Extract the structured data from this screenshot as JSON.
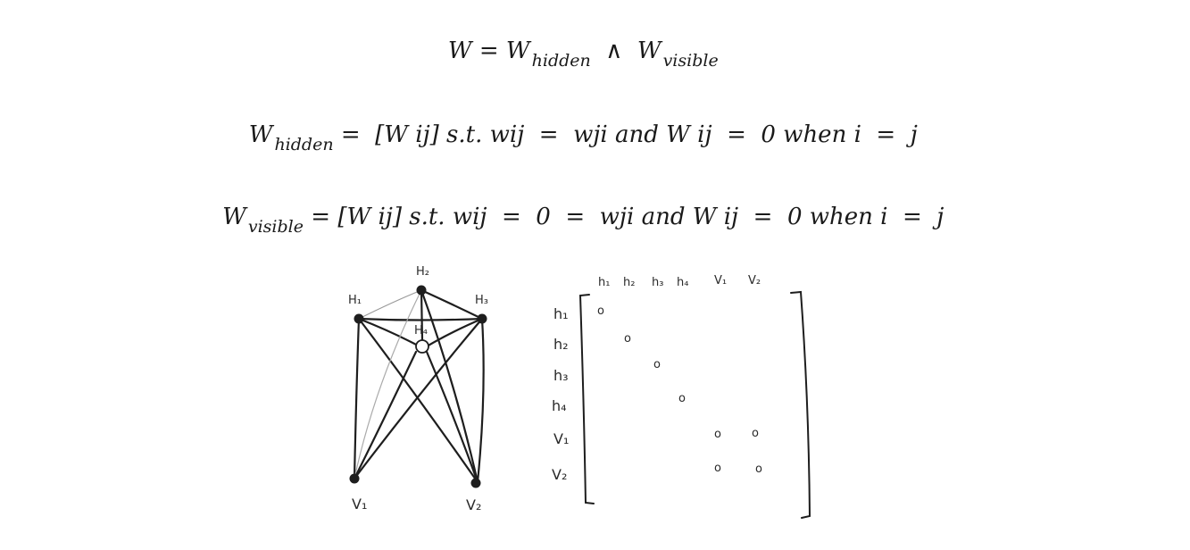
{
  "equations": [
    {
      "lhs": "W",
      "rhs_main": "W",
      "rhs_sub": "hidden",
      "op": "∧",
      "term2": "W",
      "term2_sub": "visible"
    },
    {
      "lhs": "W",
      "lhs_sub": "hidden",
      "body": " =  [W ij] s.t. wij  =  wji and W ij  =  0 when i  =  j"
    },
    {
      "lhs": "W",
      "lhs_sub": "visible",
      "body": " = [W ij] s.t. wij  =  0  =  wji and W ij  =  0 when i  =  j"
    }
  ],
  "graph": {
    "nodes": [
      {
        "id": "H1",
        "label": "H₁"
      },
      {
        "id": "H2",
        "label": "H₂"
      },
      {
        "id": "H3",
        "label": "H₃"
      },
      {
        "id": "H4",
        "label": "H₄"
      },
      {
        "id": "V1",
        "label": "V₁"
      },
      {
        "id": "V2",
        "label": "V₂"
      }
    ]
  },
  "matrix": {
    "col_labels": [
      "h₁",
      "h₂",
      "h₃",
      "h₄",
      "V₁",
      "V₂"
    ],
    "row_labels": [
      "h₁",
      "h₂",
      "h₃",
      "h₄",
      "V₁",
      "V₂"
    ],
    "entries": [
      {
        "row": 0,
        "col": 0,
        "value": "o"
      },
      {
        "row": 1,
        "col": 1,
        "value": "o"
      },
      {
        "row": 2,
        "col": 2,
        "value": "o"
      },
      {
        "row": 3,
        "col": 3,
        "value": "o"
      },
      {
        "row": 4,
        "col": 4,
        "value": "o"
      },
      {
        "row": 4,
        "col": 5,
        "value": "o"
      },
      {
        "row": 5,
        "col": 4,
        "value": "o"
      },
      {
        "row": 5,
        "col": 5,
        "value": "o"
      }
    ]
  }
}
